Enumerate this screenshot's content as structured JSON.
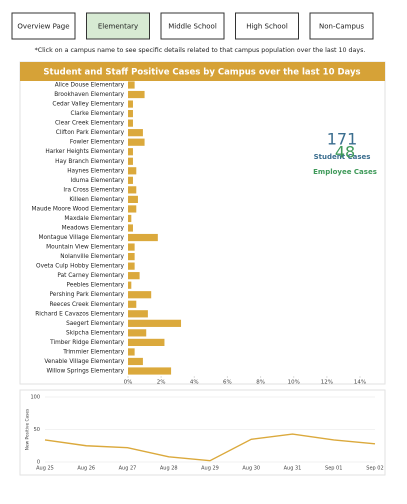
{
  "nav": {
    "tabs": [
      "Overview Page",
      "Elementary",
      "Middle School",
      "High School",
      "Non-Campus"
    ],
    "active": 1
  },
  "note": "*Click on a campus name to see specific details related to that campus population over the last 10 days.",
  "kpis": [
    {
      "value": 171,
      "label": "Student Cases",
      "color": "#3b6e8f"
    },
    {
      "value": 48,
      "label": "Employee Cases",
      "color": "#3f9a5a"
    }
  ],
  "chart_data": [
    {
      "type": "bar",
      "orientation": "horizontal",
      "title": "Student and Staff Positive Cases by Campus over the last 10 Days",
      "color": "#dba93c",
      "categories": [
        "Alice Douse Elementary",
        "Brookhaven Elementary",
        "Cedar Valley Elementary",
        "Clarke Elementary",
        "Clear Creek Elementary",
        "Clifton Park Elementary",
        "Fowler Elementary",
        "Harker Heights Elementary",
        "Hay Branch Elementary",
        "Haynes Elementary",
        "Iduma Elementary",
        "Ira Cross Elementary",
        "Killeen Elementary",
        "Maude Moore Wood Elementary",
        "Maxdale Elementary",
        "Meadows Elementary",
        "Montague Village Elementary",
        "Mountain View Elementary",
        "Nolanville Elementary",
        "Oveta Culp Hobby Elementary",
        "Pat Carney Elementary",
        "Peebles Elementary",
        "Pershing Park Elementary",
        "Reeces Creek Elementary",
        "Richard E Cavazos Elementary",
        "Saegert Elementary",
        "Skipcha Elementary",
        "Timber Ridge Elementary",
        "Trimmier Elementary",
        "Venable Village Elementary",
        "Willow Springs Elementary"
      ],
      "values": [
        0.4,
        1.0,
        0.3,
        0.3,
        0.3,
        0.9,
        1.0,
        0.3,
        0.3,
        0.5,
        0.3,
        0.5,
        0.6,
        0.5,
        0.2,
        0.3,
        1.8,
        0.4,
        0.4,
        0.4,
        0.7,
        0.2,
        1.4,
        0.5,
        1.2,
        3.2,
        1.1,
        2.2,
        0.4,
        0.9,
        2.6
      ],
      "xlim": [
        0,
        14
      ],
      "xticks": [
        {
          "value": 0,
          "label": "0%"
        },
        {
          "value": 2,
          "label": "2%"
        },
        {
          "value": 4,
          "label": "4%"
        },
        {
          "value": 6,
          "label": "6%"
        },
        {
          "value": 8,
          "label": "8%"
        },
        {
          "value": 10,
          "label": "10%"
        },
        {
          "value": 12,
          "label": "12%"
        },
        {
          "value": 14,
          "label": "14%"
        }
      ]
    },
    {
      "type": "line",
      "color": "#dba93c",
      "y_label": "New Positive Cases",
      "categories": [
        "Aug 25",
        "Aug 26",
        "Aug 27",
        "Aug 28",
        "Aug 29",
        "Aug 30",
        "Aug 31",
        "Sep 01",
        "Sep 02"
      ],
      "values": [
        34,
        25,
        22,
        8,
        2,
        35,
        43,
        34,
        28
      ],
      "ylim": [
        0,
        100
      ],
      "yticks": [
        0,
        50,
        100
      ],
      "grid": true
    }
  ]
}
